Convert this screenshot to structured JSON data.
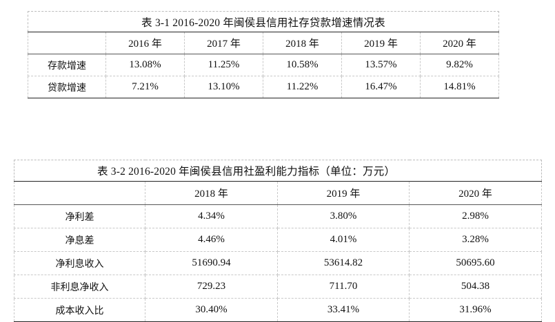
{
  "table1": {
    "caption": "表 3-1      2016-2020 年闽侯县信用社存贷款增速情况表",
    "headers": [
      "",
      "2016 年",
      "2017 年",
      "2018 年",
      "2019 年",
      "2020 年"
    ],
    "rows": [
      {
        "label": "存款增速",
        "values": [
          "13.08%",
          "11.25%",
          "10.58%",
          "13.57%",
          "9.82%"
        ]
      },
      {
        "label": "贷款增速",
        "values": [
          "7.21%",
          "13.10%",
          "11.22%",
          "16.47%",
          "14.81%"
        ]
      }
    ]
  },
  "table2": {
    "caption": "表 3-2      2016-2020 年闽侯县信用社盈利能力指标（单位：万元）",
    "headers": [
      "",
      "2018 年",
      "2019 年",
      "2020 年"
    ],
    "rows": [
      {
        "label": "净利差",
        "values": [
          "4.34%",
          "3.80%",
          "2.98%"
        ]
      },
      {
        "label": "净息差",
        "values": [
          "4.46%",
          "4.01%",
          "3.28%"
        ]
      },
      {
        "label": "净利息收入",
        "values": [
          "51690.94",
          "53614.82",
          "50695.60"
        ]
      },
      {
        "label": "非利息净收入",
        "values": [
          "729.23",
          "711.70",
          "504.38"
        ]
      },
      {
        "label": "成本收入比",
        "values": [
          "30.40%",
          "33.41%",
          "31.96%"
        ]
      }
    ]
  }
}
